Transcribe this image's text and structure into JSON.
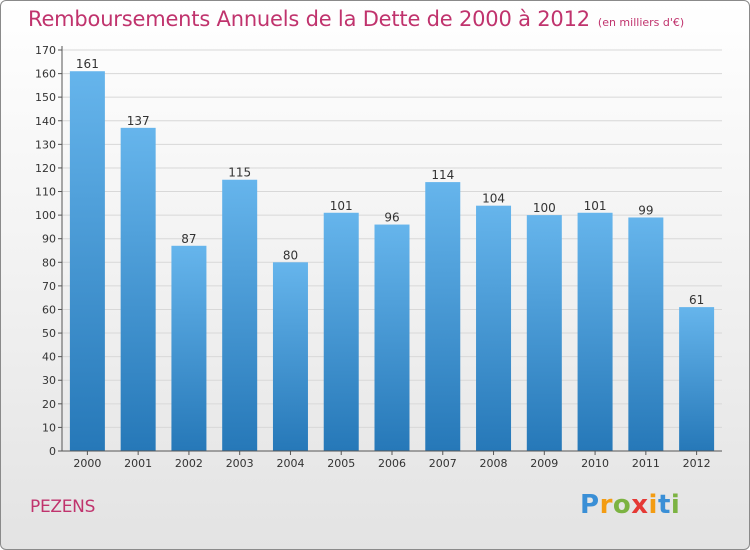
{
  "header": {
    "title": "Remboursements Annuels de la Dette de 2000 à 2012",
    "unit": "(en milliers d'€)"
  },
  "footer": {
    "commune": "PEZENS",
    "logo": {
      "letters": [
        "P",
        "r",
        "o",
        "x",
        "i",
        "t",
        "i"
      ],
      "colors": [
        "#3a8fd6",
        "#f39c12",
        "#7cb342",
        "#e53935",
        "#f39c12",
        "#3a8fd6",
        "#7cb342"
      ]
    }
  },
  "colors": {
    "bar_light": "#66b5ec",
    "bar_dark": "#2678b8",
    "title": "#c0336d",
    "grid": "#d8d8d8"
  },
  "chart_data": {
    "type": "bar",
    "categories": [
      "2000",
      "2001",
      "2002",
      "2003",
      "2004",
      "2005",
      "2006",
      "2007",
      "2008",
      "2009",
      "2010",
      "2011",
      "2012"
    ],
    "values": [
      161,
      137,
      87,
      115,
      80,
      101,
      96,
      114,
      104,
      100,
      101,
      99,
      61
    ],
    "ylim": [
      0,
      170
    ],
    "ytick_step": 10,
    "grid": true
  }
}
